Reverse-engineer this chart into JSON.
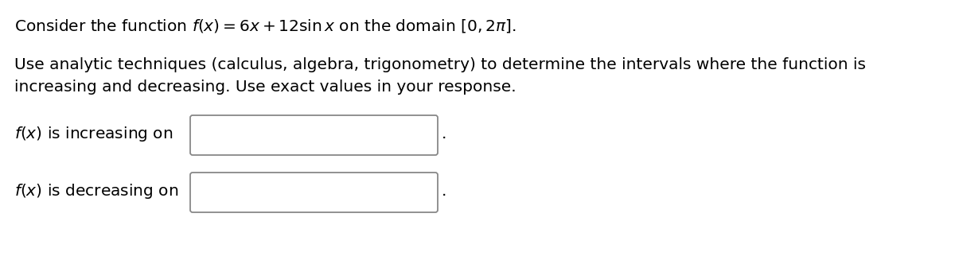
{
  "background_color": "#ffffff",
  "line1": "Consider the function $f(x) = 6x + 12\\sin x$ on the domain $[0, 2\\pi]$.",
  "line2": "Use analytic techniques (calculus, algebra, trigonometry) to determine the intervals where the function is",
  "line3": "increasing and decreasing. Use exact values in your response.",
  "label_increasing": "$f(x)$ is increasing on",
  "label_decreasing": "$f(x)$ is decreasing on",
  "font_size_main": 14.5,
  "font_size_label": 14.5,
  "text_color": "#000000",
  "box_color": "#ffffff",
  "box_edge_color": "#888888"
}
